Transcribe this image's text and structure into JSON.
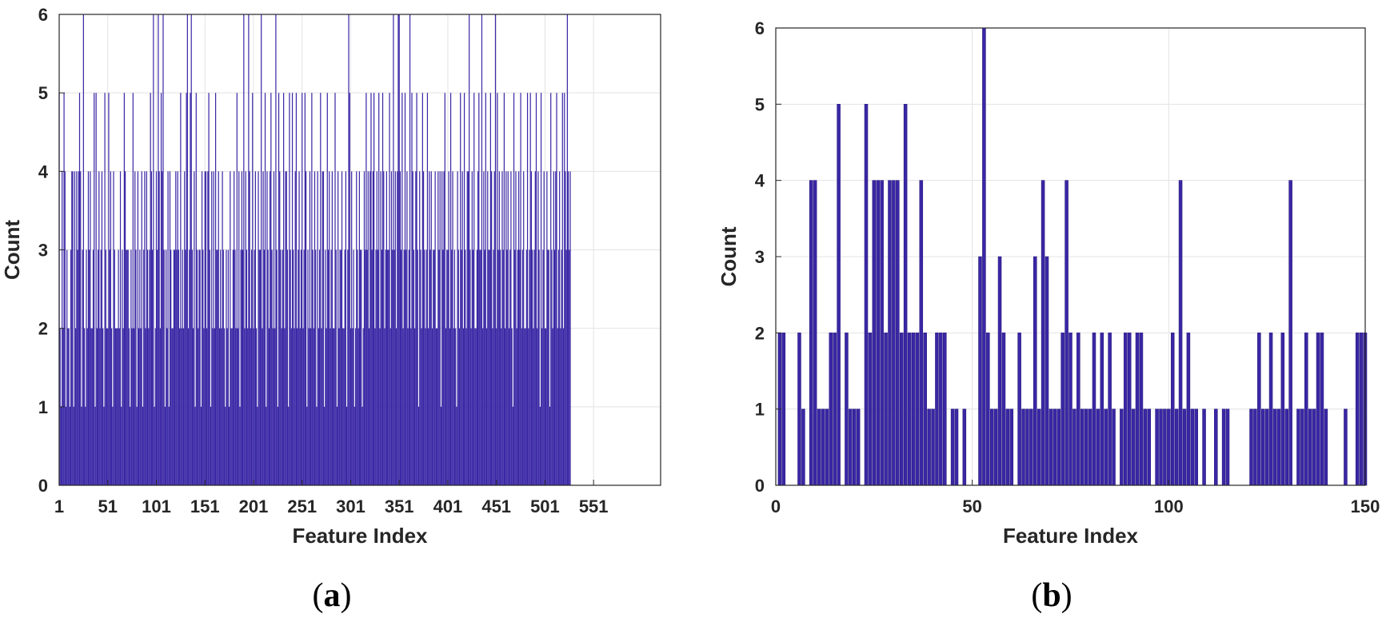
{
  "colors": {
    "bar": "#3a27a5",
    "axis": "#262626",
    "grid": "#e3e3e3",
    "background": "#ffffff"
  },
  "chart_data": [
    {
      "panel": "a",
      "type": "bar",
      "caption_letter": "a",
      "caption_open": "(",
      "caption_close": ")",
      "title": "",
      "xlabel": "Feature Index",
      "ylabel": "Count",
      "xlim": [
        1,
        620
      ],
      "ylim": [
        0,
        6
      ],
      "xticks": [
        1,
        51,
        101,
        151,
        201,
        251,
        301,
        351,
        401,
        451,
        501,
        551
      ],
      "yticks": [
        0,
        1,
        2,
        3,
        4,
        5,
        6
      ],
      "grid": true,
      "bar_width": 1,
      "x_start": 1,
      "values": [
        5,
        2,
        1,
        4,
        2,
        5,
        4,
        1,
        3,
        2,
        2,
        1,
        3,
        4,
        4,
        1,
        4,
        2,
        4,
        3,
        4,
        5,
        4,
        1,
        3,
        6,
        2,
        1,
        3,
        2,
        4,
        3,
        4,
        2,
        2,
        3,
        5,
        1,
        5,
        2,
        3,
        4,
        2,
        3,
        4,
        2,
        1,
        5,
        3,
        2,
        2,
        5,
        3,
        4,
        2,
        1,
        4,
        3,
        2,
        2,
        2,
        3,
        2,
        4,
        1,
        3,
        2,
        5,
        4,
        3,
        3,
        3,
        2,
        1,
        3,
        2,
        5,
        2,
        4,
        3,
        1,
        4,
        2,
        3,
        2,
        4,
        1,
        3,
        4,
        2,
        4,
        3,
        2,
        3,
        5,
        4,
        3,
        6,
        1,
        2,
        4,
        3,
        6,
        4,
        2,
        5,
        4,
        6,
        3,
        1,
        3,
        2,
        4,
        1,
        4,
        3,
        2,
        2,
        3,
        3,
        4,
        3,
        4,
        3,
        2,
        5,
        2,
        3,
        2,
        4,
        3,
        5,
        6,
        2,
        3,
        5,
        6,
        3,
        2,
        4,
        1,
        5,
        3,
        2,
        3,
        3,
        1,
        4,
        3,
        2,
        4,
        4,
        2,
        4,
        5,
        3,
        1,
        4,
        2,
        4,
        2,
        5,
        3,
        3,
        4,
        2,
        3,
        2,
        4,
        3,
        2,
        1,
        3,
        2,
        3,
        1,
        4,
        2,
        2,
        3,
        4,
        3,
        2,
        5,
        2,
        4,
        1,
        3,
        4,
        3,
        6,
        2,
        4,
        3,
        2,
        6,
        4,
        2,
        3,
        5,
        2,
        3,
        4,
        2,
        1,
        4,
        3,
        3,
        6,
        2,
        4,
        3,
        5,
        1,
        4,
        3,
        2,
        4,
        5,
        3,
        2,
        4,
        2,
        6,
        3,
        1,
        5,
        4,
        3,
        2,
        3,
        5,
        2,
        4,
        4,
        3,
        1,
        5,
        3,
        2,
        5,
        3,
        2,
        4,
        5,
        2,
        3,
        4,
        2,
        3,
        5,
        2,
        3,
        5,
        4,
        1,
        3,
        2,
        4,
        2,
        5,
        3,
        2,
        4,
        3,
        1,
        4,
        2,
        3,
        5,
        2,
        4,
        4,
        1,
        3,
        2,
        5,
        3,
        4,
        2,
        3,
        4,
        2,
        2,
        5,
        3,
        1,
        4,
        2,
        3,
        3,
        4,
        2,
        2,
        3,
        4,
        1,
        3,
        6,
        5,
        2,
        4,
        2,
        3,
        1,
        2,
        4,
        3,
        2,
        4,
        3,
        3,
        1,
        2,
        4,
        3,
        5,
        3,
        4,
        2,
        4,
        5,
        3,
        4,
        5,
        2,
        3,
        4,
        3,
        5,
        2,
        4,
        3,
        5,
        4,
        2,
        3,
        4,
        3,
        3,
        5,
        2,
        4,
        3,
        6,
        3,
        4,
        2,
        4,
        6,
        6,
        4,
        3,
        5,
        2,
        3,
        5,
        3,
        4,
        2,
        3,
        6,
        2,
        5,
        4,
        3,
        2,
        4,
        5,
        3,
        1,
        4,
        3,
        2,
        5,
        4,
        3,
        2,
        3,
        5,
        2,
        4,
        3,
        4,
        2,
        3,
        3,
        4,
        2,
        2,
        4,
        3,
        4,
        1,
        4,
        3,
        4,
        5,
        2,
        3,
        3,
        4,
        2,
        5,
        3,
        4,
        2,
        3,
        2,
        1,
        4,
        3,
        2,
        5,
        3,
        4,
        2,
        5,
        3,
        2,
        4,
        4,
        6,
        3,
        2,
        4,
        3,
        5,
        2,
        2,
        3,
        4,
        5,
        3,
        3,
        6,
        2,
        4,
        3,
        5,
        2,
        4,
        3,
        3,
        5,
        4,
        2,
        3,
        4,
        6,
        2,
        5,
        3,
        4,
        3,
        2,
        4,
        3,
        5,
        2,
        4,
        3,
        4,
        2,
        3,
        4,
        2,
        1,
        5,
        3,
        4,
        2,
        3,
        4,
        3,
        5,
        2,
        3,
        4,
        2,
        2,
        3,
        5,
        2,
        3,
        5,
        4,
        3,
        2,
        3,
        4,
        5,
        2,
        4,
        3,
        1,
        5,
        2,
        3,
        4,
        2,
        2,
        4,
        3,
        3,
        1,
        5,
        3,
        2,
        4,
        3,
        4,
        5,
        2,
        3,
        4,
        2,
        3,
        5,
        2,
        5,
        4,
        3,
        6,
        4,
        3,
        4
      ]
    },
    {
      "panel": "b",
      "type": "bar",
      "caption_letter": "b",
      "caption_open": "(",
      "caption_close": ")",
      "title": "",
      "xlabel": "Feature Index",
      "ylabel": "Count",
      "xlim": [
        0,
        150
      ],
      "ylim": [
        0,
        6
      ],
      "xticks": [
        0,
        50,
        100,
        150
      ],
      "yticks": [
        0,
        1,
        2,
        3,
        4,
        5,
        6
      ],
      "grid": true,
      "bar_width": 0.8,
      "x_start": 1,
      "values": [
        2,
        2,
        0,
        0,
        0,
        2,
        1,
        0,
        4,
        4,
        1,
        1,
        1,
        2,
        2,
        5,
        0,
        2,
        1,
        1,
        1,
        0,
        5,
        2,
        4,
        4,
        4,
        2,
        4,
        4,
        4,
        2,
        5,
        2,
        2,
        2,
        4,
        2,
        1,
        1,
        2,
        2,
        2,
        0,
        1,
        1,
        0,
        1,
        0,
        0,
        0,
        3,
        6,
        2,
        1,
        1,
        3,
        2,
        1,
        1,
        0,
        2,
        1,
        1,
        1,
        3,
        1,
        4,
        3,
        1,
        1,
        1,
        2,
        4,
        2,
        1,
        2,
        1,
        1,
        1,
        2,
        1,
        2,
        1,
        2,
        1,
        0,
        1,
        2,
        2,
        1,
        2,
        2,
        1,
        1,
        0,
        1,
        1,
        1,
        1,
        2,
        1,
        4,
        1,
        2,
        1,
        1,
        0,
        1,
        0,
        0,
        1,
        0,
        1,
        1,
        0,
        0,
        0,
        0,
        0,
        1,
        1,
        2,
        1,
        1,
        2,
        1,
        1,
        2,
        1,
        4,
        0,
        1,
        1,
        2,
        1,
        1,
        2,
        2,
        1,
        0,
        0,
        0,
        0,
        1,
        0,
        0,
        2,
        2,
        2
      ]
    }
  ]
}
